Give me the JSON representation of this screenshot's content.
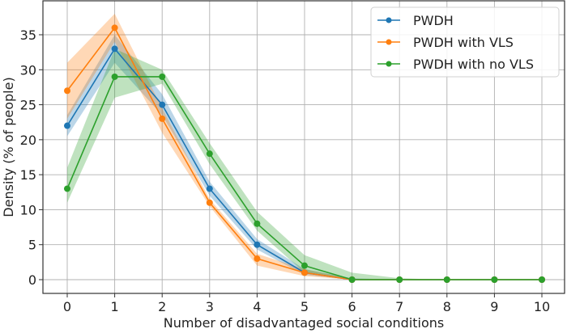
{
  "chart_data": {
    "type": "line",
    "title": "",
    "xlabel": "Number of disadvantaged social conditions",
    "ylabel": "Density (% of people)",
    "x": [
      0,
      1,
      2,
      3,
      4,
      5,
      6,
      7,
      8,
      9,
      10
    ],
    "xticks": [
      "0",
      "1",
      "2",
      "3",
      "4",
      "5",
      "6",
      "7",
      "8",
      "9",
      "10"
    ],
    "yticks": [
      "0",
      "5",
      "10",
      "15",
      "20",
      "25",
      "30",
      "35"
    ],
    "xlim": [
      -0.5,
      10.5
    ],
    "ylim": [
      -2,
      40
    ],
    "grid": true,
    "legend_position": "top-right",
    "series": [
      {
        "name": "PWDH",
        "color": "#1f77b4",
        "values": [
          22,
          33,
          25,
          13,
          5,
          1,
          0,
          0,
          0,
          0,
          0
        ],
        "ci_low": [
          20.5,
          31,
          23.5,
          12,
          4.3,
          0.7,
          0,
          0,
          0,
          0,
          0
        ],
        "ci_high": [
          23.5,
          35,
          26.5,
          14,
          5.8,
          1.5,
          0.2,
          0,
          0,
          0,
          0
        ]
      },
      {
        "name": "PWDH with VLS",
        "color": "#ff7f0e",
        "values": [
          27,
          36,
          23,
          11,
          3,
          1,
          0,
          0,
          0,
          0,
          0
        ],
        "ci_low": [
          23,
          34,
          21,
          10.5,
          2,
          0.5,
          0,
          0,
          0,
          0,
          0
        ],
        "ci_high": [
          31,
          38,
          24.5,
          11.5,
          3.7,
          1.5,
          0.1,
          0,
          0,
          0,
          0
        ]
      },
      {
        "name": "PWDH with no VLS",
        "color": "#2ca02c",
        "values": [
          13,
          29,
          29,
          18,
          8,
          2,
          0,
          0,
          0,
          0,
          0
        ],
        "ci_low": [
          11,
          26,
          28,
          16.5,
          7,
          1,
          0,
          0,
          0,
          0,
          0
        ],
        "ci_high": [
          16,
          33,
          30,
          19.5,
          9.7,
          3.5,
          1,
          0.2,
          0,
          0,
          0
        ]
      }
    ]
  }
}
